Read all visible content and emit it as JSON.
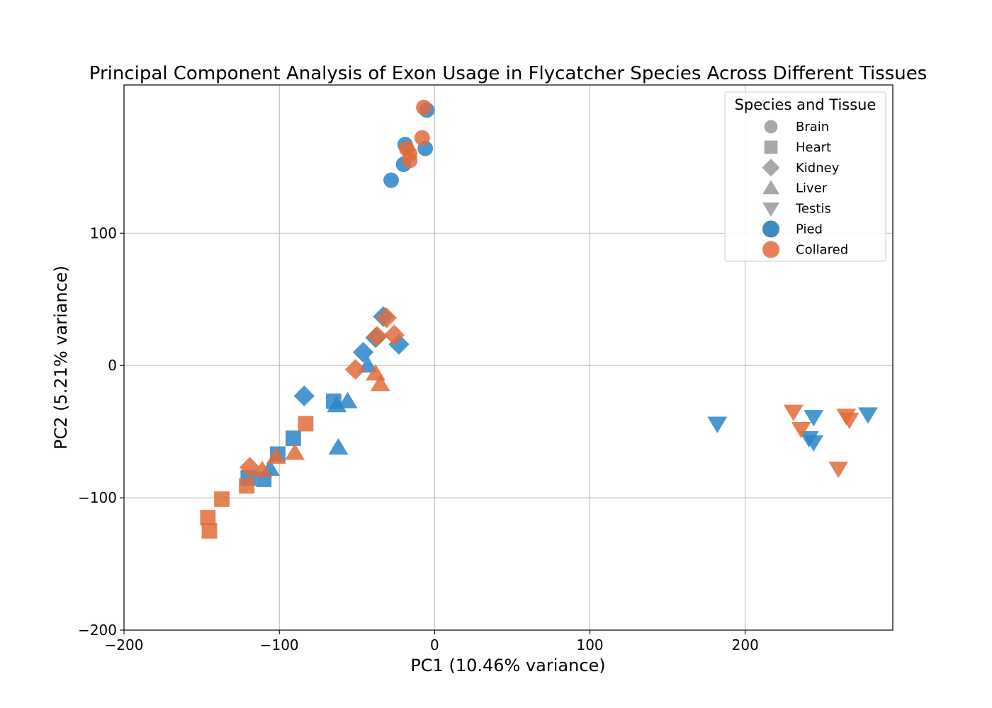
{
  "chart_data": {
    "type": "scatter",
    "title": "Principal Component Analysis of Exon Usage in Flycatcher Species Across Different Tissues",
    "xlabel": "PC1 (10.46% variance)",
    "ylabel": "PC2 (5.21% variance)",
    "xlim": [
      -200,
      295
    ],
    "ylim": [
      -200,
      212
    ],
    "xticks": [
      -200,
      -100,
      0,
      100,
      200
    ],
    "yticks": [
      -200,
      -100,
      0,
      100
    ],
    "xtick_labels": [
      "−200",
      "−100",
      "0",
      "100",
      "200"
    ],
    "ytick_labels": [
      "−200",
      "−100",
      "0",
      "100"
    ],
    "grid": true,
    "legend": {
      "title": "Species and Tissue",
      "placement": "top-right",
      "tissue_entries": [
        {
          "label": "Brain",
          "marker": "circle"
        },
        {
          "label": "Heart",
          "marker": "square"
        },
        {
          "label": "Kidney",
          "marker": "diamond"
        },
        {
          "label": "Liver",
          "marker": "triangle-up"
        },
        {
          "label": "Testis",
          "marker": "triangle-down"
        }
      ],
      "species_entries": [
        {
          "label": "Pied",
          "color": "#1f77b4"
        },
        {
          "label": "Collared",
          "color": "#e06c3a"
        }
      ],
      "neutral_color": "#999999"
    },
    "series": [
      {
        "name": "Pied",
        "color": "#2a85c8",
        "points": [
          {
            "tissue": "Brain",
            "x": -5,
            "y": 193
          },
          {
            "tissue": "Brain",
            "x": -19,
            "y": 167
          },
          {
            "tissue": "Brain",
            "x": -6,
            "y": 164
          },
          {
            "tissue": "Brain",
            "x": -20,
            "y": 152
          },
          {
            "tissue": "Brain",
            "x": -28,
            "y": 140
          },
          {
            "tissue": "Heart",
            "x": -65,
            "y": -27
          },
          {
            "tissue": "Heart",
            "x": -91,
            "y": -55
          },
          {
            "tissue": "Heart",
            "x": -101,
            "y": -67
          },
          {
            "tissue": "Heart",
            "x": -110,
            "y": -86
          },
          {
            "tissue": "Heart",
            "x": -120,
            "y": -85
          },
          {
            "tissue": "Kidney",
            "x": -33,
            "y": 37
          },
          {
            "tissue": "Kidney",
            "x": -38,
            "y": 21
          },
          {
            "tissue": "Kidney",
            "x": -23,
            "y": 16
          },
          {
            "tissue": "Kidney",
            "x": -46,
            "y": 10
          },
          {
            "tissue": "Kidney",
            "x": -84,
            "y": -23
          },
          {
            "tissue": "Liver",
            "x": -56,
            "y": -27
          },
          {
            "tissue": "Liver",
            "x": -63,
            "y": -30
          },
          {
            "tissue": "Liver",
            "x": -62,
            "y": -62
          },
          {
            "tissue": "Liver",
            "x": -106,
            "y": -78
          },
          {
            "tissue": "Liver",
            "x": -43,
            "y": 0
          },
          {
            "tissue": "Testis",
            "x": 182,
            "y": -44
          },
          {
            "tissue": "Testis",
            "x": 244,
            "y": -39
          },
          {
            "tissue": "Testis",
            "x": 279,
            "y": -37
          },
          {
            "tissue": "Testis",
            "x": 241,
            "y": -55
          },
          {
            "tissue": "Testis",
            "x": 244,
            "y": -58
          }
        ]
      },
      {
        "name": "Collared",
        "color": "#e06c3a",
        "points": [
          {
            "tissue": "Brain",
            "x": -7,
            "y": 195
          },
          {
            "tissue": "Brain",
            "x": -8,
            "y": 172
          },
          {
            "tissue": "Brain",
            "x": -18,
            "y": 164
          },
          {
            "tissue": "Brain",
            "x": -16,
            "y": 160
          },
          {
            "tissue": "Brain",
            "x": -16,
            "y": 155
          },
          {
            "tissue": "Heart",
            "x": -83,
            "y": -44
          },
          {
            "tissue": "Heart",
            "x": -121,
            "y": -91
          },
          {
            "tissue": "Heart",
            "x": -137,
            "y": -101
          },
          {
            "tissue": "Heart",
            "x": -146,
            "y": -115
          },
          {
            "tissue": "Heart",
            "x": -145,
            "y": -125
          },
          {
            "tissue": "Kidney",
            "x": -31,
            "y": 36
          },
          {
            "tissue": "Kidney",
            "x": -26,
            "y": 23
          },
          {
            "tissue": "Kidney",
            "x": -37,
            "y": 22
          },
          {
            "tissue": "Kidney",
            "x": -51,
            "y": -3
          },
          {
            "tissue": "Kidney",
            "x": -119,
            "y": -77
          },
          {
            "tissue": "Liver",
            "x": -38,
            "y": -6
          },
          {
            "tissue": "Liver",
            "x": -35,
            "y": -14
          },
          {
            "tissue": "Liver",
            "x": -90,
            "y": -66
          },
          {
            "tissue": "Liver",
            "x": -102,
            "y": -69
          },
          {
            "tissue": "Liver",
            "x": -111,
            "y": -79
          },
          {
            "tissue": "Testis",
            "x": 231,
            "y": -35
          },
          {
            "tissue": "Testis",
            "x": 236,
            "y": -48
          },
          {
            "tissue": "Testis",
            "x": 265,
            "y": -38
          },
          {
            "tissue": "Testis",
            "x": 267,
            "y": -41
          },
          {
            "tissue": "Testis",
            "x": 260,
            "y": -78
          }
        ]
      }
    ]
  }
}
